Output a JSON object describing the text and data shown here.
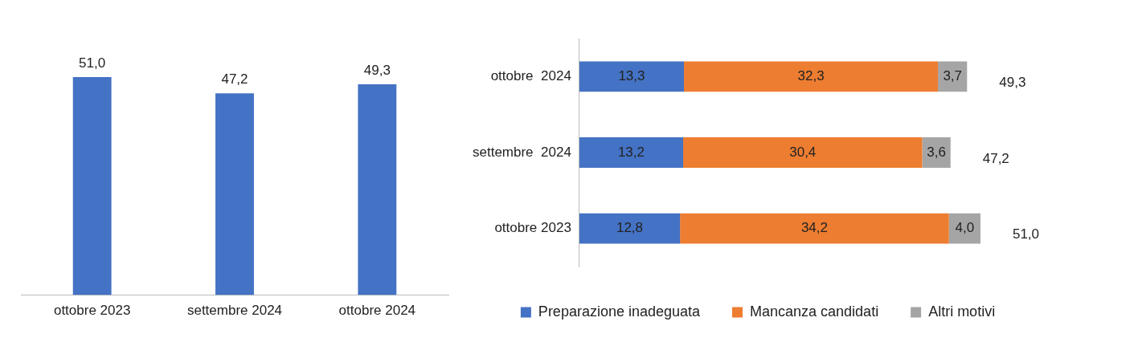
{
  "chart_data": [
    {
      "type": "bar",
      "categories": [
        "ottobre 2023",
        "settembre 2024",
        "ottobre 2024"
      ],
      "values": [
        51.0,
        47.2,
        49.3
      ],
      "color": "#4472c4",
      "value_labels": [
        "51,0",
        "47,2",
        "49,3"
      ],
      "tick_labels": "x",
      "legend": false
    },
    {
      "type": "bar",
      "orientation": "horizontal",
      "stacked": true,
      "categories": [
        "ottobre  2024",
        "settembre  2024",
        "ottobre 2023"
      ],
      "series": [
        {
          "name": "Preparazione inadeguata",
          "color": "#4472c4",
          "values": [
            13.3,
            13.2,
            12.8
          ],
          "value_labels": [
            "13,3",
            "13,2",
            "12,8"
          ]
        },
        {
          "name": "Mancanza candidati",
          "color": "#ed7d31",
          "values": [
            32.3,
            30.4,
            34.2
          ],
          "value_labels": [
            "32,3",
            "30,4",
            "34,2"
          ]
        },
        {
          "name": "Altri motivi",
          "color": "#a5a5a5",
          "values": [
            3.7,
            3.6,
            4.0
          ],
          "value_labels": [
            "3,7",
            "3,6",
            "4,0"
          ]
        }
      ],
      "totals": [
        "49,3",
        "47,2",
        "51,0"
      ],
      "tick_labels": "y",
      "legend": "bottom"
    }
  ]
}
